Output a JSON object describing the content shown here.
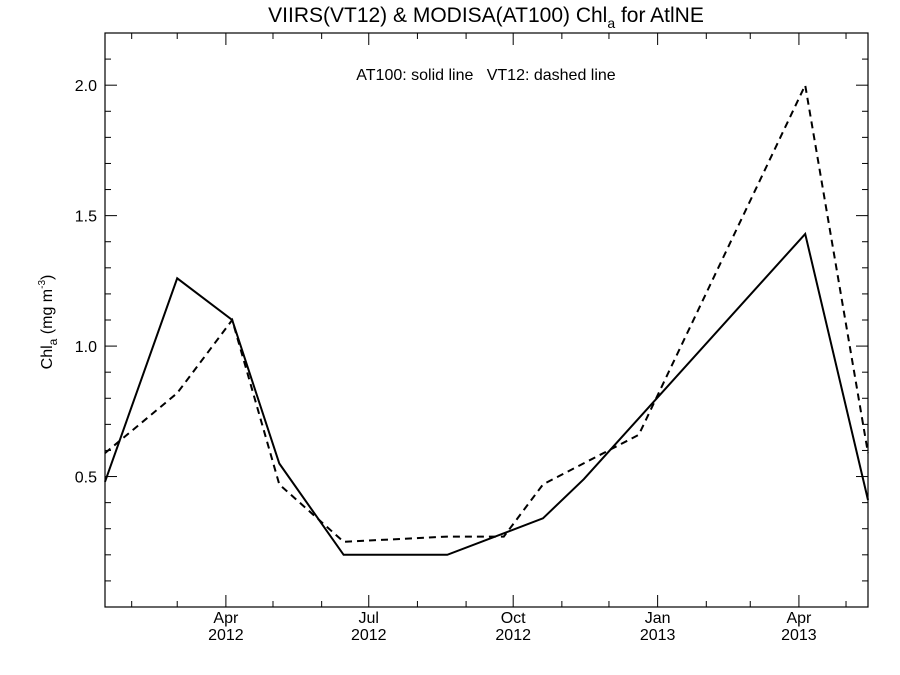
{
  "chart_data": {
    "type": "line",
    "title_main": "VIIRS(VT12) & MODISA(AT100)  Chl",
    "title_sub": "a",
    "title_tail": " for AtlNE",
    "annotation": "AT100: solid line   VT12: dashed line",
    "ylabel_main": "Chl",
    "ylabel_sub": "a",
    "ylabel_unit": " (mg m",
    "ylabel_sup": "-3",
    "ylabel_close": ")",
    "ylim": [
      0.0,
      2.2
    ],
    "y_ticks": [
      0.5,
      1.0,
      1.5,
      2.0
    ],
    "y_tick_labels": [
      "0.5",
      "1.0",
      "1.5",
      "2.0"
    ],
    "xlim": [
      "2012-01-15",
      "2013-05-15"
    ],
    "x_tick_labels": [
      {
        "date": "2012-04-01",
        "month": "Apr",
        "year": "2012"
      },
      {
        "date": "2012-07-01",
        "month": "Jul",
        "year": "2012"
      },
      {
        "date": "2012-10-01",
        "month": "Oct",
        "year": "2012"
      },
      {
        "date": "2013-01-01",
        "month": "Jan",
        "year": "2013"
      },
      {
        "date": "2013-04-01",
        "month": "Apr",
        "year": "2013"
      }
    ],
    "grid": false,
    "series": [
      {
        "name": "AT100",
        "style": "solid",
        "x": [
          "2012-01-15",
          "2012-03-01",
          "2012-04-05",
          "2012-05-05",
          "2012-06-15",
          "2012-08-20",
          "2012-10-20",
          "2012-11-15",
          "2013-04-05",
          "2013-05-15"
        ],
        "y": [
          0.48,
          1.26,
          1.1,
          0.55,
          0.2,
          0.2,
          0.34,
          0.49,
          1.43,
          0.41
        ]
      },
      {
        "name": "VT12",
        "style": "dashed",
        "x": [
          "2012-01-15",
          "2012-03-01",
          "2012-04-05",
          "2012-05-05",
          "2012-06-15",
          "2012-08-20",
          "2012-09-25",
          "2012-10-20",
          "2012-12-20",
          "2013-04-05",
          "2013-05-15"
        ],
        "y": [
          0.59,
          0.82,
          1.1,
          0.47,
          0.25,
          0.27,
          0.27,
          0.47,
          0.66,
          2.0,
          0.59
        ]
      }
    ]
  }
}
